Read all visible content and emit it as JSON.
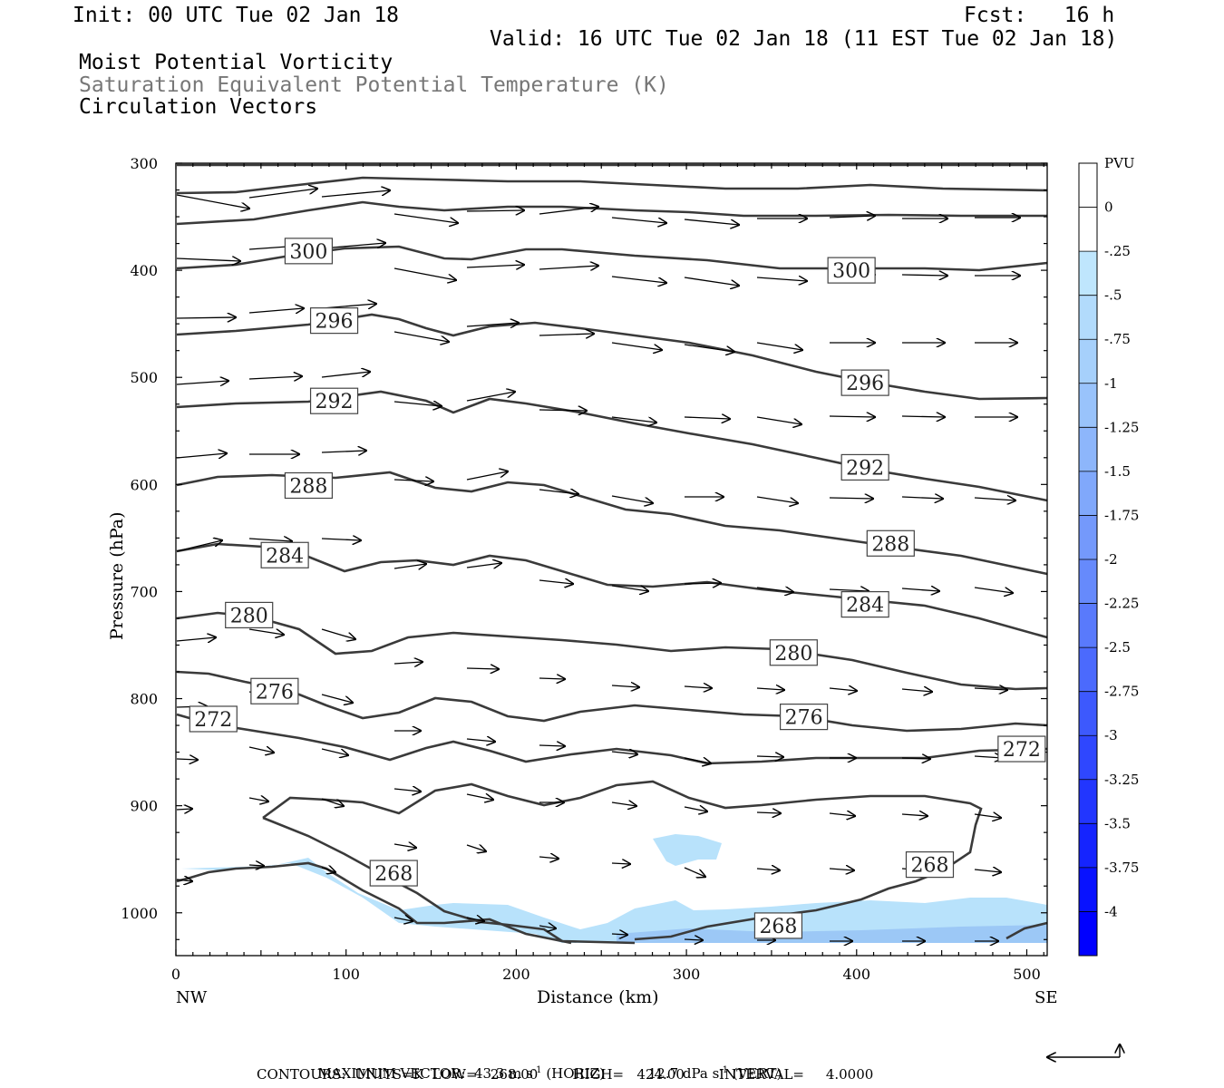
{
  "header": {
    "init": "Init: 00 UTC Tue 02 Jan 18",
    "fcst": "Fcst:   16 h",
    "valid": "Valid: 16 UTC Tue 02 Jan 18 (11 EST Tue 02 Jan 18)",
    "line1": "Moist Potential Vorticity",
    "line2": "Saturation Equivalent Potential Temperature (K)",
    "line3": "Circulation Vectors"
  },
  "footer": {
    "max_vector_label": "MAXIMUM VECTOR:",
    "max_vector_horiz": "43.3 m s",
    "horiz_suffix": " (HORIZ)",
    "max_vector_vert": "12.7 dPa s",
    "vert_suffix": " (VERT)",
    "exponent": "-1",
    "contours_line": "CONTOURS:  UNITS=K  LOW=   268.00        HIGH=   424.00        INTERVAL=     4.0000"
  },
  "colors": {
    "contour": "#3a3a3a",
    "mpv_light": "#b8e2fb",
    "mpv_mid": "#9cc8f6"
  },
  "chart_data": {
    "type": "cross-section",
    "xlabel": "Distance (km)",
    "ylabel": "Pressure (hPa)",
    "x_ticks": [
      "0",
      "100",
      "200",
      "300",
      "400",
      "500"
    ],
    "x_end_labels": [
      "NW",
      "SE"
    ],
    "y_ticks": [
      "300",
      "400",
      "500",
      "600",
      "700",
      "800",
      "900",
      "1000"
    ],
    "xlim": [
      0,
      512
    ],
    "ylim": [
      300,
      1040
    ],
    "y_reversed": true,
    "colorbar": {
      "title": "PVU",
      "labels": [
        "0",
        "-.25",
        "-.5",
        "-.75",
        "-1",
        "-1.25",
        "-1.5",
        "-1.75",
        "-2",
        "-2.25",
        "-2.5",
        "-2.75",
        "-3",
        "-3.25",
        "-3.5",
        "-3.75",
        "-4"
      ],
      "colors": [
        "#ffffff",
        "#ffffff",
        "#bfe6fd",
        "#b2dbfc",
        "#a6d0fb",
        "#99c3fb",
        "#8db6fb",
        "#80a8fb",
        "#7499fb",
        "#668afc",
        "#597afc",
        "#4b6afd",
        "#3d59fd",
        "#2f47fe",
        "#2236fe",
        "#1524fe",
        "#0812ff",
        "#0000ff"
      ]
    },
    "contour_labels": [
      {
        "text": "300",
        "x": 78,
        "p": 382
      },
      {
        "text": "300",
        "x": 397,
        "p": 400
      },
      {
        "text": "296",
        "x": 93,
        "p": 447
      },
      {
        "text": "296",
        "x": 405,
        "p": 505
      },
      {
        "text": "292",
        "x": 93,
        "p": 522
      },
      {
        "text": "292",
        "x": 405,
        "p": 584
      },
      {
        "text": "288",
        "x": 78,
        "p": 601
      },
      {
        "text": "288",
        "x": 420,
        "p": 655
      },
      {
        "text": "284",
        "x": 64,
        "p": 666
      },
      {
        "text": "284",
        "x": 405,
        "p": 712
      },
      {
        "text": "280",
        "x": 43,
        "p": 722
      },
      {
        "text": "280",
        "x": 363,
        "p": 757
      },
      {
        "text": "276",
        "x": 58,
        "p": 793
      },
      {
        "text": "276",
        "x": 369,
        "p": 817
      },
      {
        "text": "272",
        "x": 22,
        "p": 819
      },
      {
        "text": "272",
        "x": 497,
        "p": 847
      },
      {
        "text": "268",
        "x": 128,
        "p": 963
      },
      {
        "text": "268",
        "x": 443,
        "p": 955
      },
      {
        "text": "268",
        "x": 354,
        "p": 1012
      }
    ]
  }
}
